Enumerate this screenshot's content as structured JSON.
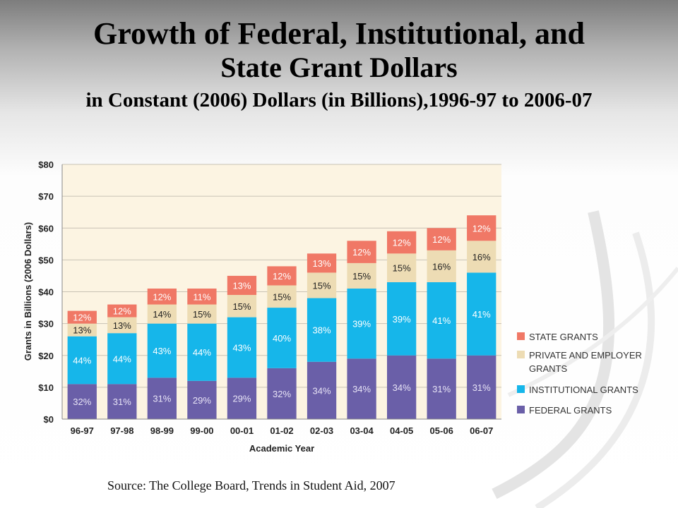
{
  "title": {
    "line1": "Growth of Federal, Institutional, and",
    "line2": "State Grant Dollars",
    "subtitle": "in Constant (2006) Dollars (in Billions),1996-97  to 2006-07"
  },
  "source": "Source: The College Board, Trends in Student Aid, 2007",
  "colors": {
    "federal": "#6a5fa8",
    "institutional": "#16b6ea",
    "private": "#eddcb4",
    "state": "#f07866",
    "plot_background": "#fcf4e2",
    "gridline": "#c8c2b4"
  },
  "chart_data": {
    "type": "bar",
    "stacked": true,
    "xlabel": "Academic Year",
    "ylabel": "Grants in Billions (2006 Dollars)",
    "ylim": [
      0,
      80
    ],
    "y_ticks": [
      "$0",
      "$10",
      "$20",
      "$30",
      "$40",
      "$50",
      "$60",
      "$70",
      "$80"
    ],
    "grid": true,
    "legend_position": "right",
    "categories": [
      "96-97",
      "97-98",
      "98-99",
      "99-00",
      "00-01",
      "01-02",
      "02-03",
      "03-04",
      "04-05",
      "05-06",
      "06-07"
    ],
    "series": [
      {
        "name": "FEDERAL GRANTS",
        "color_key": "federal",
        "values": [
          11,
          11,
          13,
          12,
          13,
          16,
          18,
          19,
          20,
          19,
          20
        ],
        "labels": [
          "32%",
          "31%",
          "31%",
          "29%",
          "29%",
          "32%",
          "34%",
          "34%",
          "34%",
          "31%",
          "31%"
        ],
        "label_color": "#e8e4f6"
      },
      {
        "name": "INSTITUTIONAL GRANTS",
        "color_key": "institutional",
        "values": [
          15,
          16,
          17,
          18,
          19,
          19,
          20,
          22,
          23,
          24,
          26
        ],
        "labels": [
          "44%",
          "44%",
          "43%",
          "44%",
          "43%",
          "40%",
          "38%",
          "39%",
          "39%",
          "41%",
          "41%"
        ],
        "label_color": "#ffffff"
      },
      {
        "name": "PRIVATE AND EMPLOYER GRANTS",
        "color_key": "private",
        "values": [
          4,
          5,
          6,
          6,
          7,
          7,
          8,
          8,
          9,
          10,
          10
        ],
        "labels": [
          "13%",
          "13%",
          "14%",
          "15%",
          "15%",
          "15%",
          "15%",
          "15%",
          "15%",
          "16%",
          "16%"
        ],
        "label_color": "#222222"
      },
      {
        "name": "STATE GRANTS",
        "color_key": "state",
        "values": [
          4,
          4,
          5,
          5,
          6,
          6,
          6,
          7,
          7,
          7,
          8
        ],
        "labels": [
          "12%",
          "12%",
          "12%",
          "11%",
          "13%",
          "12%",
          "13%",
          "12%",
          "12%",
          "12%",
          "12%"
        ],
        "label_color": "#ffffff"
      }
    ],
    "legend": [
      {
        "color_key": "state",
        "lines": [
          "STATE GRANTS"
        ]
      },
      {
        "color_key": "private",
        "lines": [
          "PRIVATE AND EMPLOYER",
          "GRANTS"
        ]
      },
      {
        "color_key": "institutional",
        "lines": [
          "INSTITUTIONAL GRANTS"
        ]
      },
      {
        "color_key": "federal",
        "lines": [
          "FEDERAL GRANTS"
        ]
      }
    ]
  }
}
